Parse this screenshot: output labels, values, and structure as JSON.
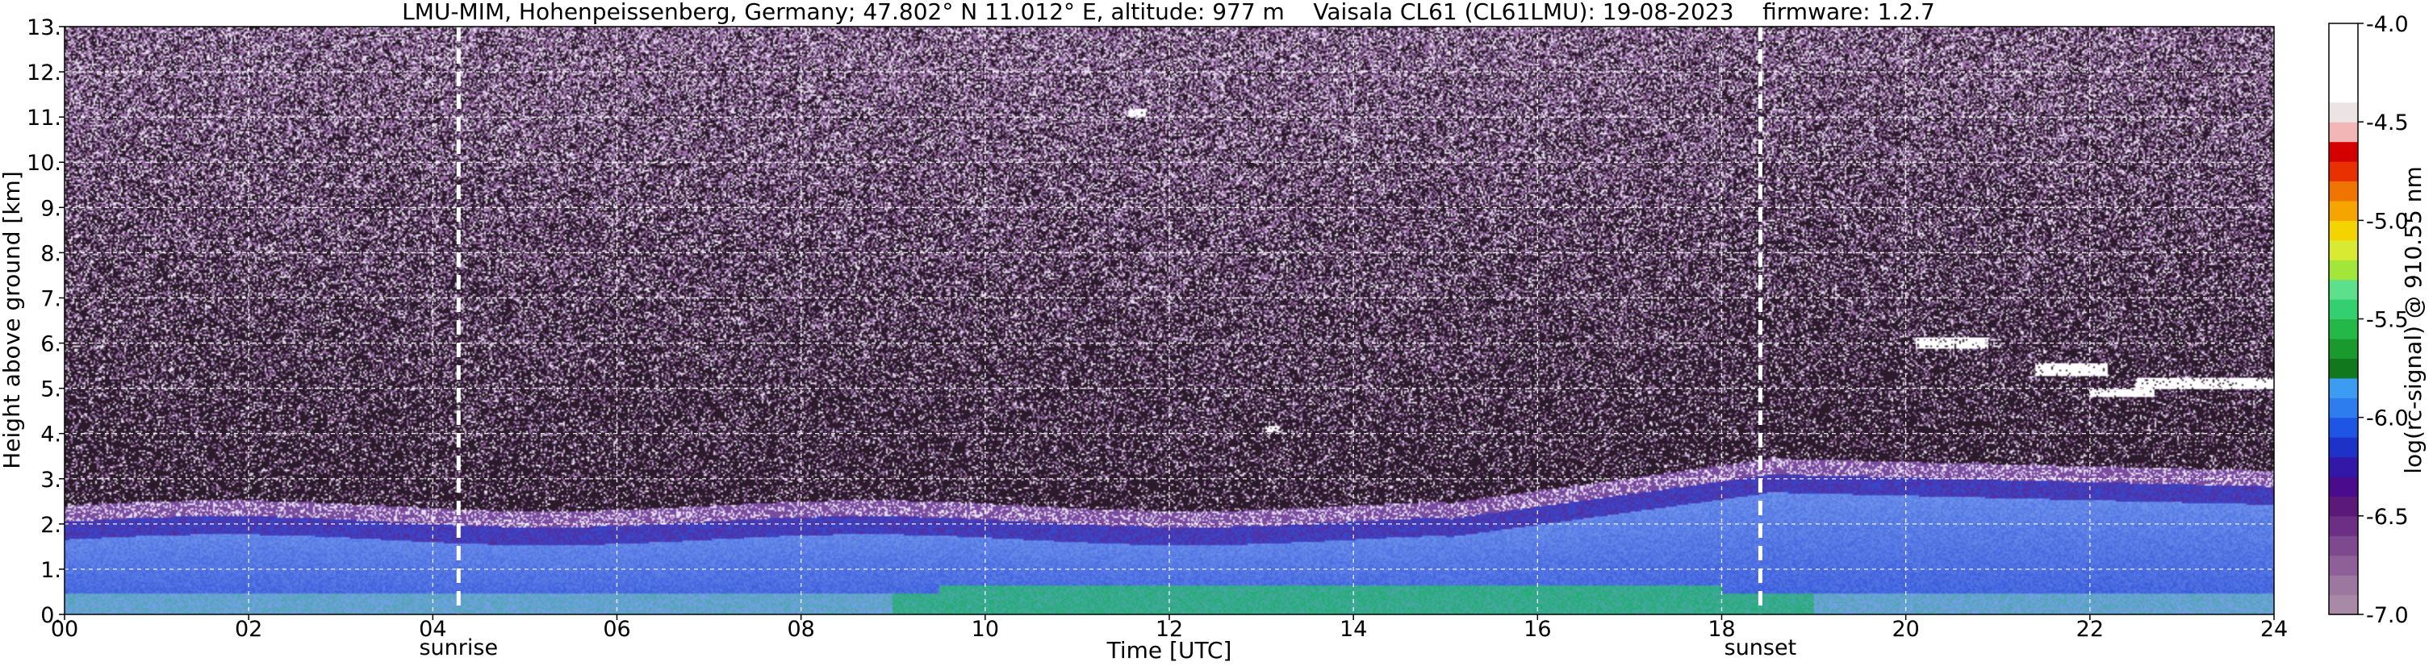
{
  "chart_data": {
    "type": "heatmap",
    "title": "LMU-MIM, Hohenpeissenberg, Germany; 47.802° N 11.012° E, altitude: 977 m    Vaisala CL61 (CL61LMU): 19-08-2023    firmware: 1.2.7",
    "xlabel": "Time [UTC]",
    "ylabel": "Height above ground [km]",
    "xlim": [
      0,
      24
    ],
    "ylim": [
      0,
      13
    ],
    "x_ticks": [
      "00",
      "02",
      "04",
      "06",
      "08",
      "10",
      "12",
      "14",
      "16",
      "18",
      "20",
      "22",
      "24"
    ],
    "y_ticks": [
      "0.",
      "1.",
      "2.",
      "3.",
      "4.",
      "5.",
      "6.",
      "7.",
      "8.",
      "9.",
      "10.",
      "11.",
      "12.",
      "13."
    ],
    "grid": true,
    "markers": [
      {
        "label": "sunrise",
        "time": 4.28
      },
      {
        "label": "sunset",
        "time": 18.42
      }
    ],
    "colorbar": {
      "label": "log(rc-signal) @ 910.55 nm",
      "range": [
        -7.0,
        -4.0
      ],
      "tick_values": [
        -4.0,
        -4.5,
        -5.0,
        -5.5,
        -6.0,
        -6.5,
        -7.0
      ],
      "tick_labels": [
        "-4.0",
        "-4.5",
        "-5.0",
        "-5.5",
        "-6.0",
        "-6.5",
        "-7.0"
      ],
      "colors": [
        "#a88aa6",
        "#9c77a0",
        "#8e5f98",
        "#7f4990",
        "#6d2f85",
        "#5b1a7a",
        "#4a0c8c",
        "#3318a8",
        "#1f32c8",
        "#1f55e4",
        "#2e7dee",
        "#3c9cf2",
        "#11781e",
        "#1a9a2c",
        "#24b848",
        "#34cf6e",
        "#5ce08c",
        "#a2e63a",
        "#d8ea32",
        "#f4d400",
        "#f5a400",
        "#f07400",
        "#e83000",
        "#d40000",
        "#f2b6b6",
        "#ece4e4",
        "#ffffff",
        "#ffffff",
        "#ffffff",
        "#ffffff"
      ]
    },
    "colors": {
      "background": "#2a1a2a",
      "noise_high": "#e8e0f0",
      "noise_mid": "#9a6fa8",
      "aerosol_dense": "#5a2a98",
      "aerosol_blue": "#2f4fd8",
      "aerosol_light": "#7a9ff0",
      "surface_green": "#1fae6a",
      "cloud": "#ffffff"
    }
  }
}
